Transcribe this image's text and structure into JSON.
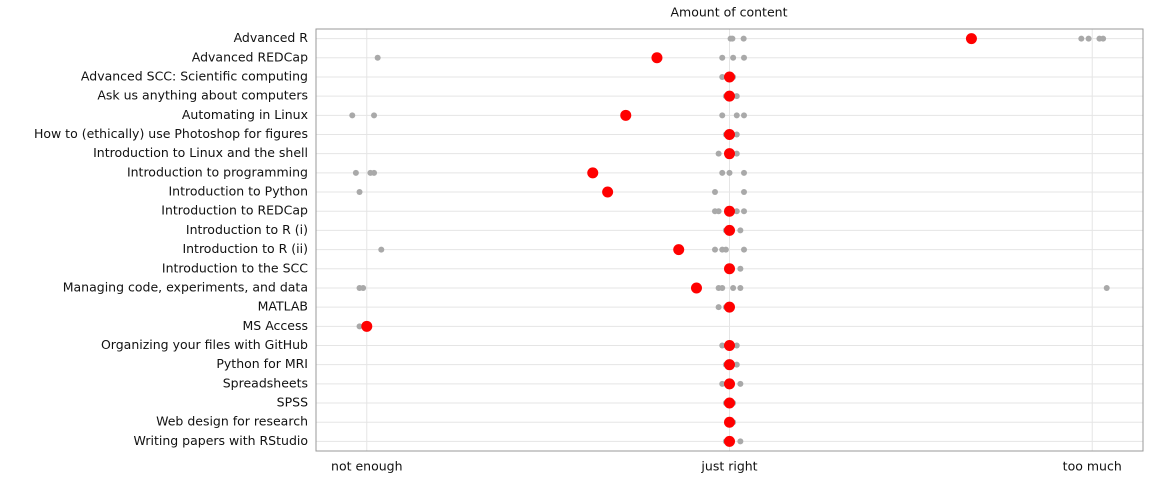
{
  "chart_data": {
    "type": "scatter",
    "title": "Amount of content",
    "categories": [
      "Advanced R",
      "Advanced REDCap",
      "Advanced SCC: Scientific computing",
      "Ask us anything about computers",
      "Automating in Linux",
      "How to (ethically) use Photoshop for figures",
      "Introduction to Linux and the shell",
      "Introduction to programming",
      "Introduction to Python",
      "Introduction to REDCap",
      "Introduction to R (i)",
      "Introduction to R (ii)",
      "Introduction to the SCC",
      "Managing code, experiments, and data",
      "MATLAB",
      "MS Access",
      "Organizing your files with GitHub",
      "Python for MRI",
      "Spreadsheets",
      "SPSS",
      "Web design for research",
      "Writing papers with RStudio"
    ],
    "responses": [
      [
        2.003,
        2.008,
        2.039,
        2.97,
        2.99,
        3.02,
        3.03
      ],
      [
        1.03,
        1.98,
        2.01,
        2.04
      ],
      [
        1.98,
        2.01
      ],
      [
        1.99,
        2.02
      ],
      [
        0.96,
        1.02,
        1.98,
        2.02,
        2.04
      ],
      [
        1.99,
        2.02
      ],
      [
        1.97,
        2.02
      ],
      [
        0.97,
        1.01,
        1.02,
        1.98,
        2.0,
        2.04
      ],
      [
        0.98,
        1.96,
        2.04
      ],
      [
        1.96,
        1.97,
        2.02,
        2.04
      ],
      [
        1.99,
        2.03
      ],
      [
        1.04,
        1.96,
        1.98,
        1.99,
        2.04
      ],
      [
        2.03
      ],
      [
        0.98,
        0.99,
        1.97,
        1.98,
        2.01,
        2.03,
        3.04
      ],
      [
        1.97,
        1.99
      ],
      [
        0.98
      ],
      [
        1.98,
        2.02
      ],
      [
        1.99,
        2.02
      ],
      [
        1.98,
        2.03
      ],
      [
        1.99,
        2.01
      ],
      [
        2.01
      ],
      [
        1.99,
        2.03
      ]
    ],
    "means": [
      2.667,
      1.8,
      2.0,
      2.0,
      1.714,
      2.0,
      2.0,
      1.623,
      1.664,
      2.0,
      2.0,
      1.86,
      2.0,
      1.909,
      2.0,
      1.0,
      2.0,
      2.0,
      2.0,
      2.0,
      2.0,
      2.0
    ],
    "response_color": "#a9a9a9",
    "mean_color": "#ff0000",
    "xlim": [
      0.86,
      3.14
    ],
    "xticks": [
      {
        "value": 1,
        "label": "not enough"
      },
      {
        "value": 2,
        "label": "just right"
      },
      {
        "value": 3,
        "label": "too much"
      }
    ],
    "grid": true
  }
}
